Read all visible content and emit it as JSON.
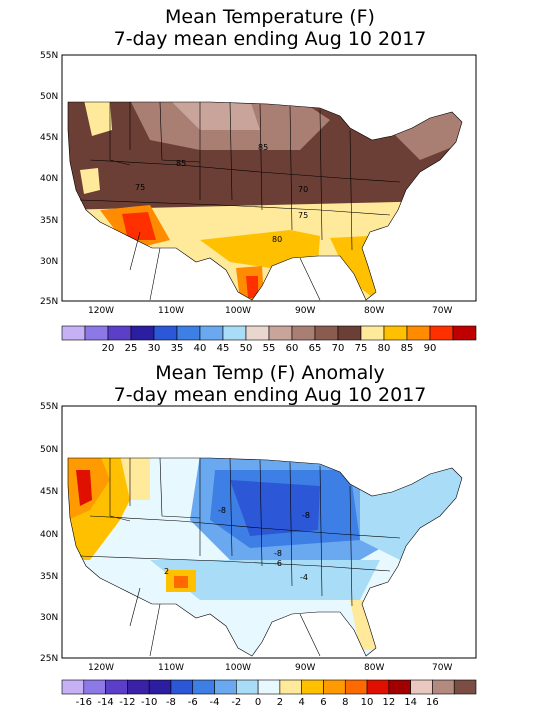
{
  "top": {
    "title_line1": "Mean Temperature (F)",
    "title_line2": "7-day mean ending Aug 10 2017",
    "lat_labels": [
      "55N",
      "50N",
      "45N",
      "40N",
      "35N",
      "30N",
      "25N"
    ],
    "lon_labels": [
      "120W",
      "110W",
      "100W",
      "90W",
      "80W",
      "70W"
    ],
    "isotherms": [
      "85",
      "85",
      "75",
      "70",
      "75",
      "80"
    ],
    "colorbar": {
      "colors": [
        "#c5b1f3",
        "#8c79e6",
        "#5b3fc9",
        "#2b1ea0",
        "#2c57d6",
        "#3e7fe5",
        "#6aa8ef",
        "#a9dcf6",
        "#e9d6cf",
        "#c9a49b",
        "#a97e73",
        "#8a5c50",
        "#6b3f35",
        "#ffe99a",
        "#ffc000",
        "#ff8c00",
        "#ff3000",
        "#c00000"
      ],
      "labels": [
        "20",
        "25",
        "30",
        "35",
        "40",
        "45",
        "50",
        "55",
        "60",
        "65",
        "70",
        "75",
        "80",
        "85",
        "90"
      ]
    }
  },
  "bottom": {
    "title_line1": "Mean Temp (F) Anomaly",
    "title_line2": "7-day mean ending Aug 10 2017",
    "lat_labels": [
      "55N",
      "50N",
      "45N",
      "40N",
      "35N",
      "30N",
      "25N"
    ],
    "lon_labels": [
      "120W",
      "110W",
      "100W",
      "90W",
      "80W",
      "70W"
    ],
    "isotherms": [
      "-8",
      "-8",
      "-8",
      "-6",
      "-4",
      "2"
    ],
    "colorbar": {
      "colors": [
        "#c5b1f3",
        "#8c79e6",
        "#5b3fc9",
        "#3a22a8",
        "#2b1ea0",
        "#2c57d6",
        "#3e7fe5",
        "#6aa8ef",
        "#a9dcf6",
        "#e8f8ff",
        "#ffe99a",
        "#ffc000",
        "#ff9a00",
        "#ff6a00",
        "#e01000",
        "#a00000",
        "#e9c8c0",
        "#b38a80",
        "#7a4e44"
      ],
      "labels": [
        "-16",
        "-14",
        "-12",
        "-10",
        "-8",
        "-6",
        "-4",
        "-2",
        "0",
        "2",
        "4",
        "6",
        "8",
        "10",
        "12",
        "14",
        "16"
      ]
    }
  }
}
